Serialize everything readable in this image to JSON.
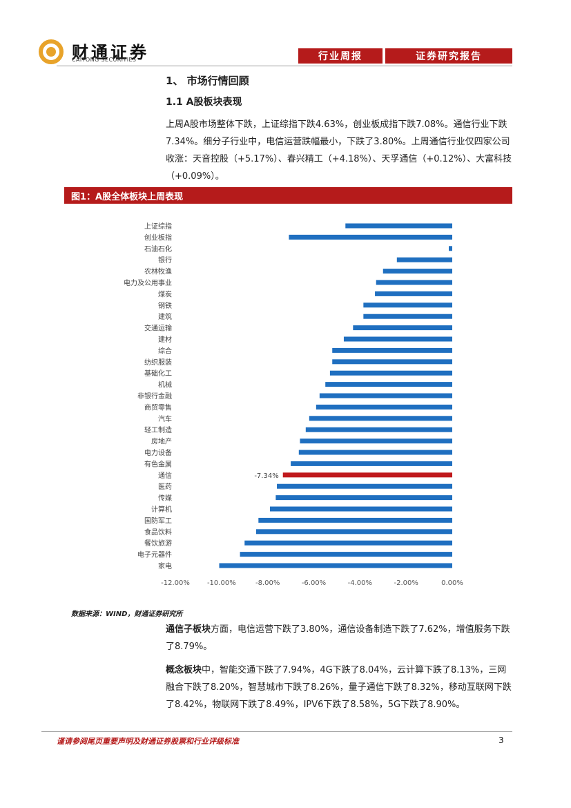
{
  "header": {
    "logo_cn": "财通证券",
    "logo_en": "CAITONG SECURITIES",
    "tag_weekly": "行业周报",
    "tag_report": "证券研究报告"
  },
  "section": {
    "h1": "1、  市场行情回顾",
    "h2": "1.1  A股板块表现",
    "p1": "上周A股市场整体下跌，上证综指下跌4.63%，创业板成指下跌7.08%。通信行业下跌7.34%。细分子行业中，电信运营跌幅最小，下跌了3.80%。上周通信行业仅四家公司收涨：天音控股（+5.17%）、春兴精工（+4.18%）、天孚通信（+0.12%）、大富科技（+0.09%）。"
  },
  "figure": {
    "title": "图1：A股全体板块上周表现",
    "source": "数据来源：WIND，财通证券研究所"
  },
  "chart_data": {
    "type": "bar",
    "orientation": "horizontal",
    "categories": [
      "上证综指",
      "创业板指",
      "石油石化",
      "银行",
      "农林牧渔",
      "电力及公用事业",
      "煤炭",
      "钢铁",
      "建筑",
      "交通运输",
      "建材",
      "综合",
      "纺织服装",
      "基础化工",
      "机械",
      "非银行金融",
      "商贸零售",
      "汽车",
      "轻工制造",
      "房地产",
      "电力设备",
      "有色金属",
      "通信",
      "医药",
      "传媒",
      "计算机",
      "国防军工",
      "食品饮料",
      "餐饮旅游",
      "电子元器件",
      "家电"
    ],
    "values": [
      -4.63,
      -7.08,
      -0.15,
      -2.4,
      -3.0,
      -3.3,
      -3.35,
      -3.85,
      -3.85,
      -4.3,
      -4.7,
      -5.2,
      -5.2,
      -5.3,
      -5.5,
      -5.75,
      -5.9,
      -6.2,
      -6.35,
      -6.6,
      -6.65,
      -7.0,
      -7.34,
      -7.6,
      -7.65,
      -7.9,
      -8.4,
      -8.5,
      -9.0,
      -9.2,
      -10.1
    ],
    "highlight": {
      "category": "通信",
      "label": "-7.34%",
      "color": "#c0191c"
    },
    "bar_color": "#1f6fc0",
    "xticks": [
      "-12.00%",
      "-10.00%",
      "-8.00%",
      "-6.00%",
      "-4.00%",
      "-2.00%",
      "0.00%"
    ],
    "xlim": [
      -12,
      0
    ],
    "grid": false
  },
  "body2": {
    "p2_bold": "通信子板块",
    "p2_rest": "方面，电信运营下跌了3.80%，通信设备制造下跌了7.62%，增值服务下跌了8.79%。",
    "p3_bold": "概念板块",
    "p3_rest": "中，智能交通下跌了7.94%，4G下跌了8.04%，云计算下跌了8.13%，三网融合下跌了8.20%，智慧城市下跌了8.26%，量子通信下跌了8.32%，移动互联网下跌了8.42%，物联网下跌了8.49%，IPV6下跌了8.58%，5G下跌了8.90%。"
  },
  "footer": {
    "disclaimer": "谨请参阅尾页重要声明及财通证券股票和行业评级标准",
    "page": "3"
  },
  "colors": {
    "brand_red": "#b51b1b",
    "logo_gold": "#e8a32a"
  }
}
